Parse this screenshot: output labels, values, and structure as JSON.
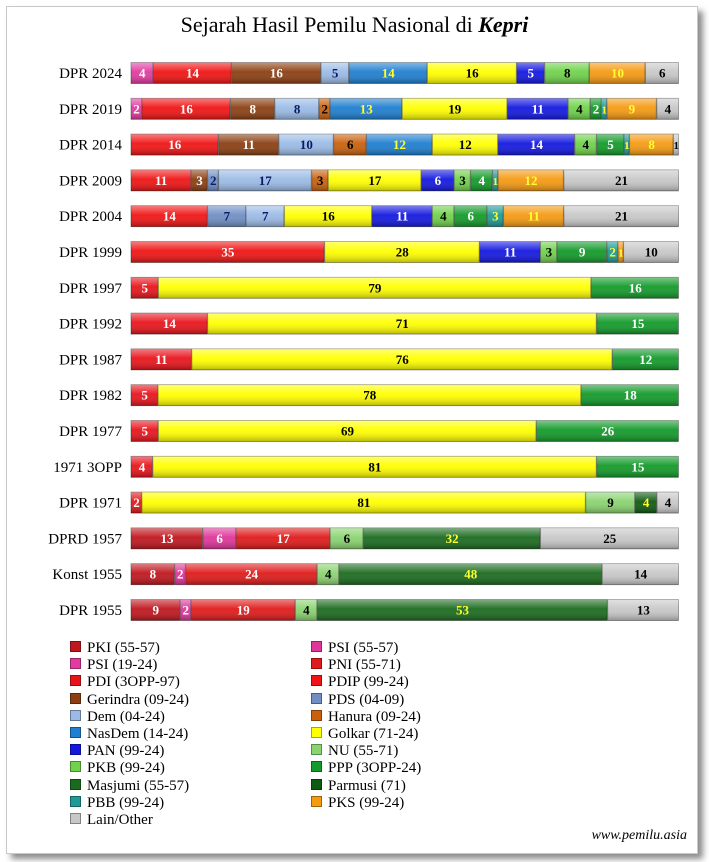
{
  "title_main": "Sejarah Hasil Pemilu Nasional di",
  "title_region": "Kepri",
  "credit": "www.pemilu.asia",
  "parties": {
    "PKI": {
      "label": "PKI (55-57)",
      "color": "#c0161e"
    },
    "PSI5557": {
      "label": "PSI (55-57)",
      "color": "#e0359a"
    },
    "PSI1924": {
      "label": "PSI (19-24)",
      "color": "#e23aa0"
    },
    "PNI": {
      "label": "PNI (55-71)",
      "color": "#e01a1a"
    },
    "PDI": {
      "label": "PDI (3OPP-97)",
      "color": "#e8141c"
    },
    "PDIP": {
      "label": "PDIP (99-24)",
      "color": "#f01414"
    },
    "Gerindra": {
      "label": "Gerindra (09-24)",
      "color": "#8b3f12"
    },
    "PDS": {
      "label": "PDS (04-09)",
      "color": "#6f8fc4"
    },
    "Dem": {
      "label": "Dem (04-24)",
      "color": "#9bbbe6"
    },
    "Hanura": {
      "label": "Hanura (09-24)",
      "color": "#c9600c"
    },
    "NasDem": {
      "label": "NasDem (14-24)",
      "color": "#1f7fd0"
    },
    "Golkar": {
      "label": "Golkar (71-24)",
      "color": "#ffff00"
    },
    "PAN": {
      "label": "PAN (99-24)",
      "color": "#1418e0"
    },
    "NU": {
      "label": "NU (55-71)",
      "color": "#8ad470"
    },
    "PKB": {
      "label": "PKB (99-24)",
      "color": "#6fd24a"
    },
    "PPP": {
      "label": "PPP (3OPP-24)",
      "color": "#139a2a"
    },
    "Masjumi": {
      "label": "Masjumi (55-57)",
      "color": "#1b6b1f"
    },
    "Parmusi": {
      "label": "Parmusi (71)",
      "color": "#0f5a12"
    },
    "PBB": {
      "label": "PBB (99-24)",
      "color": "#1f9a96"
    },
    "PKS": {
      "label": "PKS (99-24)",
      "color": "#f59a12"
    },
    "Other": {
      "label": "Lain/Other",
      "color": "#c8c8c8"
    }
  },
  "legend_order_left": [
    "PKI",
    "PSI1924",
    "PDI",
    "Gerindra",
    "Dem",
    "NasDem",
    "PAN",
    "PKB",
    "Masjumi",
    "PBB",
    "Other"
  ],
  "legend_order_right": [
    "PSI5557",
    "PNI",
    "PDIP",
    "PDS",
    "Hanura",
    "Golkar",
    "NU",
    "PPP",
    "Parmusi",
    "PKS"
  ],
  "chart_data": {
    "type": "bar",
    "orientation": "horizontal",
    "stacked": true,
    "unit": "percent",
    "title": "Sejarah Hasil Pemilu Nasional di Kepri",
    "xlim": [
      0,
      100
    ],
    "rows": [
      {
        "label": "DPR 2024",
        "segments": [
          {
            "party": "PSI1924",
            "value": 4
          },
          {
            "party": "PDIP",
            "value": 14
          },
          {
            "party": "Gerindra",
            "value": 16
          },
          {
            "party": "Dem",
            "value": 5
          },
          {
            "party": "NasDem",
            "value": 14
          },
          {
            "party": "Golkar",
            "value": 16
          },
          {
            "party": "PAN",
            "value": 5
          },
          {
            "party": "PKB",
            "value": 8
          },
          {
            "party": "PKS",
            "value": 10
          },
          {
            "party": "Other",
            "value": 6
          }
        ]
      },
      {
        "label": "DPR 2019",
        "segments": [
          {
            "party": "PSI1924",
            "value": 2
          },
          {
            "party": "PDIP",
            "value": 16
          },
          {
            "party": "Gerindra",
            "value": 8
          },
          {
            "party": "Dem",
            "value": 8
          },
          {
            "party": "Hanura",
            "value": 2
          },
          {
            "party": "NasDem",
            "value": 13
          },
          {
            "party": "Golkar",
            "value": 19
          },
          {
            "party": "PAN",
            "value": 11
          },
          {
            "party": "PKB",
            "value": 4
          },
          {
            "party": "PPP",
            "value": 2
          },
          {
            "party": "PBB",
            "value": 1
          },
          {
            "party": "PKS",
            "value": 9
          },
          {
            "party": "Other",
            "value": 4
          }
        ]
      },
      {
        "label": "DPR 2014",
        "segments": [
          {
            "party": "PDIP",
            "value": 16
          },
          {
            "party": "Gerindra",
            "value": 11
          },
          {
            "party": "Dem",
            "value": 10
          },
          {
            "party": "Hanura",
            "value": 6
          },
          {
            "party": "NasDem",
            "value": 12
          },
          {
            "party": "Golkar",
            "value": 12
          },
          {
            "party": "PAN",
            "value": 14
          },
          {
            "party": "PKB",
            "value": 4
          },
          {
            "party": "PPP",
            "value": 5
          },
          {
            "party": "PBB",
            "value": 1
          },
          {
            "party": "PKS",
            "value": 8
          },
          {
            "party": "Other",
            "value": 1
          }
        ]
      },
      {
        "label": "DPR 2009",
        "segments": [
          {
            "party": "PDIP",
            "value": 11
          },
          {
            "party": "Gerindra",
            "value": 3
          },
          {
            "party": "PDS",
            "value": 2
          },
          {
            "party": "Dem",
            "value": 17
          },
          {
            "party": "Hanura",
            "value": 3
          },
          {
            "party": "Golkar",
            "value": 17
          },
          {
            "party": "PAN",
            "value": 6
          },
          {
            "party": "PKB",
            "value": 3
          },
          {
            "party": "PPP",
            "value": 4
          },
          {
            "party": "PBB",
            "value": 1
          },
          {
            "party": "PKS",
            "value": 12
          },
          {
            "party": "Other",
            "value": 21
          }
        ]
      },
      {
        "label": "DPR 2004",
        "segments": [
          {
            "party": "PDIP",
            "value": 14
          },
          {
            "party": "PDS",
            "value": 7
          },
          {
            "party": "Dem",
            "value": 7
          },
          {
            "party": "Golkar",
            "value": 16
          },
          {
            "party": "PAN",
            "value": 11
          },
          {
            "party": "PKB",
            "value": 4
          },
          {
            "party": "PPP",
            "value": 6
          },
          {
            "party": "PBB",
            "value": 3
          },
          {
            "party": "PKS",
            "value": 11
          },
          {
            "party": "Other",
            "value": 21
          }
        ]
      },
      {
        "label": "DPR 1999",
        "segments": [
          {
            "party": "PDIP",
            "value": 35
          },
          {
            "party": "Golkar",
            "value": 28
          },
          {
            "party": "PAN",
            "value": 11
          },
          {
            "party": "PKB",
            "value": 3
          },
          {
            "party": "PPP",
            "value": 9
          },
          {
            "party": "PBB",
            "value": 2
          },
          {
            "party": "PKS",
            "value": 1
          },
          {
            "party": "Other",
            "value": 10
          }
        ]
      },
      {
        "label": "DPR 1997",
        "segments": [
          {
            "party": "PDI",
            "value": 5
          },
          {
            "party": "Golkar",
            "value": 79
          },
          {
            "party": "PPP",
            "value": 16
          }
        ]
      },
      {
        "label": "DPR 1992",
        "segments": [
          {
            "party": "PDI",
            "value": 14
          },
          {
            "party": "Golkar",
            "value": 71
          },
          {
            "party": "PPP",
            "value": 15
          }
        ]
      },
      {
        "label": "DPR 1987",
        "segments": [
          {
            "party": "PDI",
            "value": 11
          },
          {
            "party": "Golkar",
            "value": 76
          },
          {
            "party": "PPP",
            "value": 12
          }
        ]
      },
      {
        "label": "DPR 1982",
        "segments": [
          {
            "party": "PDI",
            "value": 5
          },
          {
            "party": "Golkar",
            "value": 78
          },
          {
            "party": "PPP",
            "value": 18
          }
        ]
      },
      {
        "label": "DPR 1977",
        "segments": [
          {
            "party": "PDI",
            "value": 5
          },
          {
            "party": "Golkar",
            "value": 69
          },
          {
            "party": "PPP",
            "value": 26
          }
        ]
      },
      {
        "label": "1971 3OPP",
        "segments": [
          {
            "party": "PDI",
            "value": 4
          },
          {
            "party": "Golkar",
            "value": 81
          },
          {
            "party": "PPP",
            "value": 15
          }
        ]
      },
      {
        "label": "DPR 1971",
        "segments": [
          {
            "party": "PNI",
            "value": 2
          },
          {
            "party": "Golkar",
            "value": 81
          },
          {
            "party": "NU",
            "value": 9
          },
          {
            "party": "Parmusi",
            "value": 4
          },
          {
            "party": "Other",
            "value": 4
          }
        ]
      },
      {
        "label": "DPRD 1957",
        "segments": [
          {
            "party": "PKI",
            "value": 13
          },
          {
            "party": "PSI5557",
            "value": 6
          },
          {
            "party": "PNI",
            "value": 17
          },
          {
            "party": "NU",
            "value": 6
          },
          {
            "party": "Masjumi",
            "value": 32
          },
          {
            "party": "Other",
            "value": 25
          }
        ]
      },
      {
        "label": "Konst 1955",
        "segments": [
          {
            "party": "PKI",
            "value": 8
          },
          {
            "party": "PSI5557",
            "value": 2
          },
          {
            "party": "PNI",
            "value": 24
          },
          {
            "party": "NU",
            "value": 4
          },
          {
            "party": "Masjumi",
            "value": 48
          },
          {
            "party": "Other",
            "value": 14
          }
        ]
      },
      {
        "label": "DPR 1955",
        "segments": [
          {
            "party": "PKI",
            "value": 9
          },
          {
            "party": "PSI5557",
            "value": 2
          },
          {
            "party": "PNI",
            "value": 19
          },
          {
            "party": "NU",
            "value": 4
          },
          {
            "party": "Masjumi",
            "value": 53
          },
          {
            "party": "Other",
            "value": 13
          }
        ]
      }
    ]
  }
}
